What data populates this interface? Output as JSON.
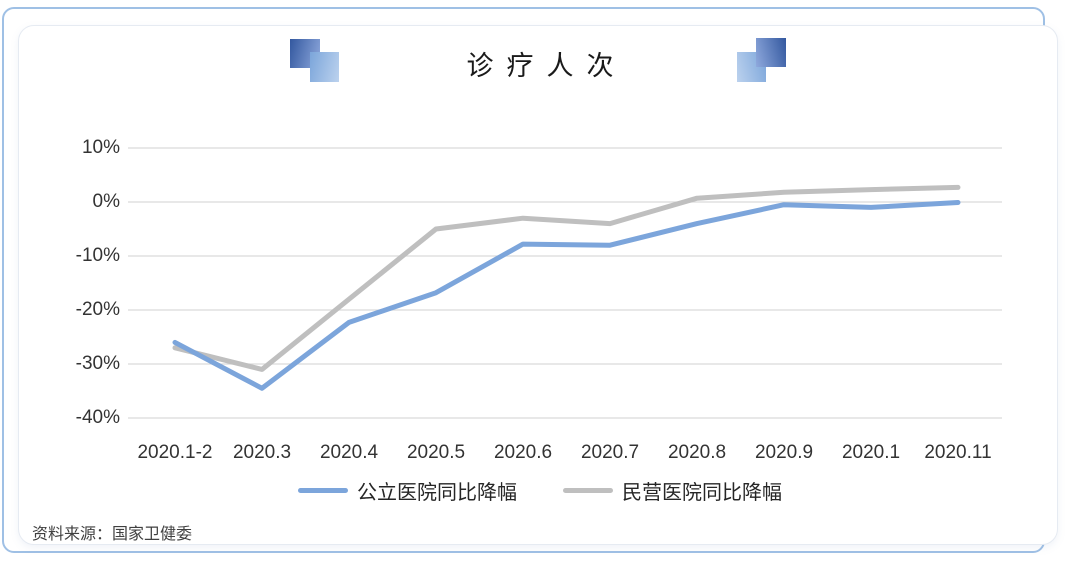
{
  "page": {
    "source_note": "资料来源：国家卫健委"
  },
  "colors": {
    "public_line": "#7CA5DB",
    "private_line": "#BFBFBF",
    "gridline": "#D9D9D9",
    "frame_border": "#9FC0E5",
    "deco_dark_blue": "#33589F",
    "deco_light_blue": "#7BA5DA",
    "title_text": "#1A1A1A",
    "axis_text": "#333333"
  },
  "chart_data": {
    "type": "line",
    "title": "诊疗人次",
    "categories": [
      "2020.1-2",
      "2020.3",
      "2020.4",
      "2020.5",
      "2020.6",
      "2020.7",
      "2020.8",
      "2020.9",
      "2020.1",
      "2020.11"
    ],
    "series": [
      {
        "name": "公立医院同比降幅",
        "color": "#7CA5DB",
        "values": [
          -26,
          -34.5,
          -22.3,
          -16.8,
          -7.8,
          -8,
          -4,
          -0.5,
          -1,
          -0.1
        ]
      },
      {
        "name": "民营医院同比降幅",
        "color": "#BFBFBF",
        "values": [
          -27,
          -31,
          -18,
          -5,
          -3,
          -4,
          0.7,
          1.8,
          2.3,
          2.7
        ]
      }
    ],
    "ylim": [
      -40,
      10
    ],
    "yticks": [
      10,
      0,
      -10,
      -20,
      -30,
      -40
    ],
    "ytick_labels": [
      "10%",
      "0%",
      "-10%",
      "-20%",
      "-30%",
      "-40%"
    ],
    "grid": true,
    "legend_position": "bottom",
    "xlabel": "",
    "ylabel": ""
  }
}
